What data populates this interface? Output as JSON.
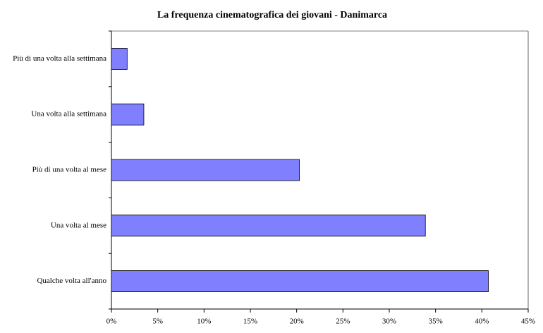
{
  "chart_data": {
    "type": "bar",
    "orientation": "horizontal",
    "title": "La frequenza cinematografica dei giovani - Danimarca",
    "categories": [
      "Più di una volta alla settimana",
      "Una volta alla settimana",
      "Più di una volta al mese",
      "Una volta al mese",
      "Qualche volta all'anno"
    ],
    "values": [
      1.7,
      3.5,
      20.3,
      33.9,
      40.7
    ],
    "color": "#8080ff",
    "xlim": [
      0,
      45
    ],
    "xticks": [
      {
        "value": 0,
        "label": "0%"
      },
      {
        "value": 5,
        "label": "5%"
      },
      {
        "value": 10,
        "label": "10%"
      },
      {
        "value": 15,
        "label": "15%"
      },
      {
        "value": 20,
        "label": "20%"
      },
      {
        "value": 25,
        "label": "25%"
      },
      {
        "value": 30,
        "label": "30%"
      },
      {
        "value": 35,
        "label": "35%"
      },
      {
        "value": 40,
        "label": "40%"
      },
      {
        "value": 45,
        "label": "45%"
      }
    ],
    "grid": false
  }
}
